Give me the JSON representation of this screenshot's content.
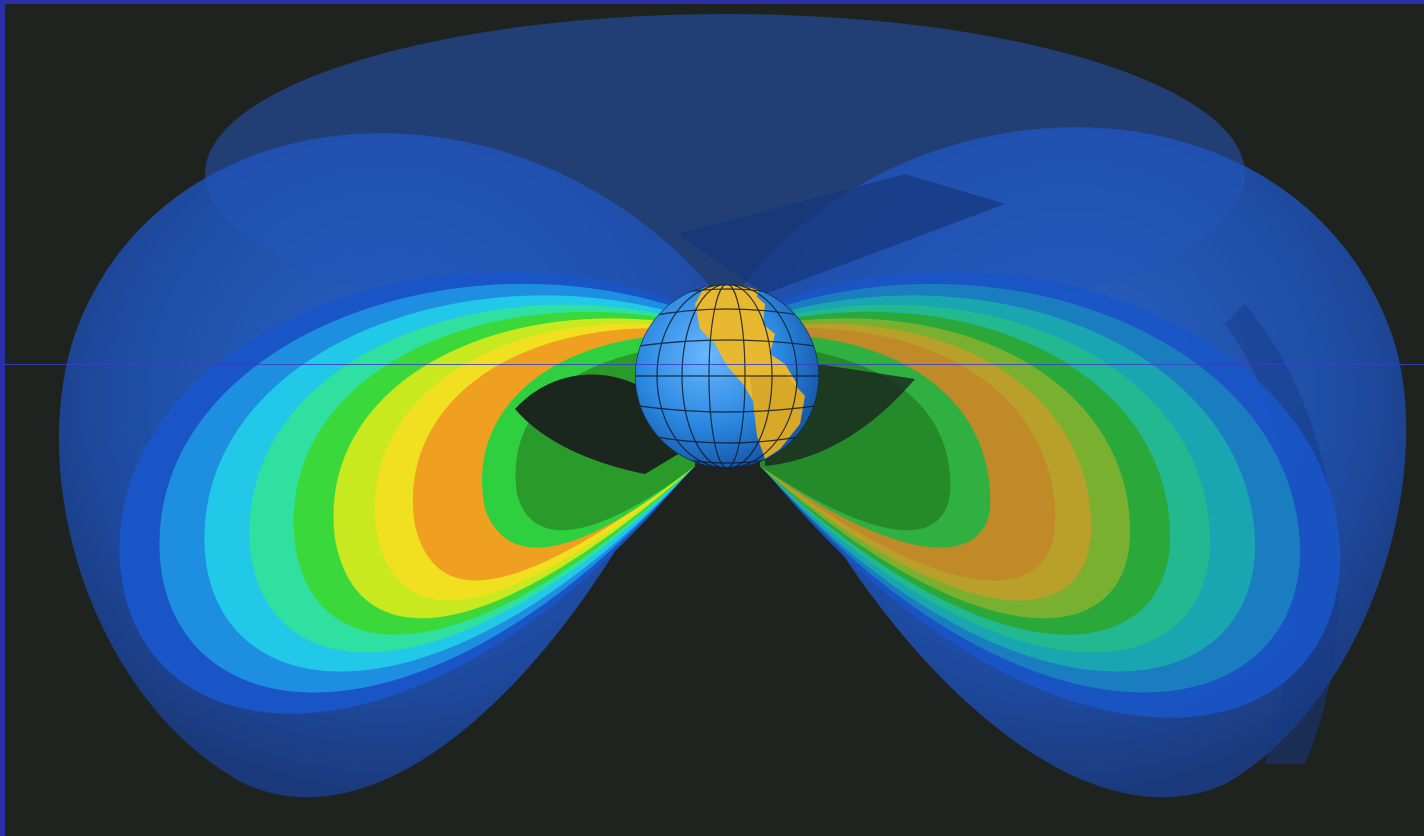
{
  "image": {
    "subject": "radiation-belts-visualization",
    "background_color": "#1f2320",
    "border_color": "#2a2fa8",
    "outer_belt_color": "#2458b8",
    "inner_belt_colors": [
      "#1a55c8",
      "#1e8fe0",
      "#22c8e8",
      "#30e0a0",
      "#3ad83a",
      "#c8e820",
      "#f0e020",
      "#f0a020"
    ],
    "earth_ocean_color": "#2f8fe0",
    "earth_land_color": "#e8b830"
  }
}
